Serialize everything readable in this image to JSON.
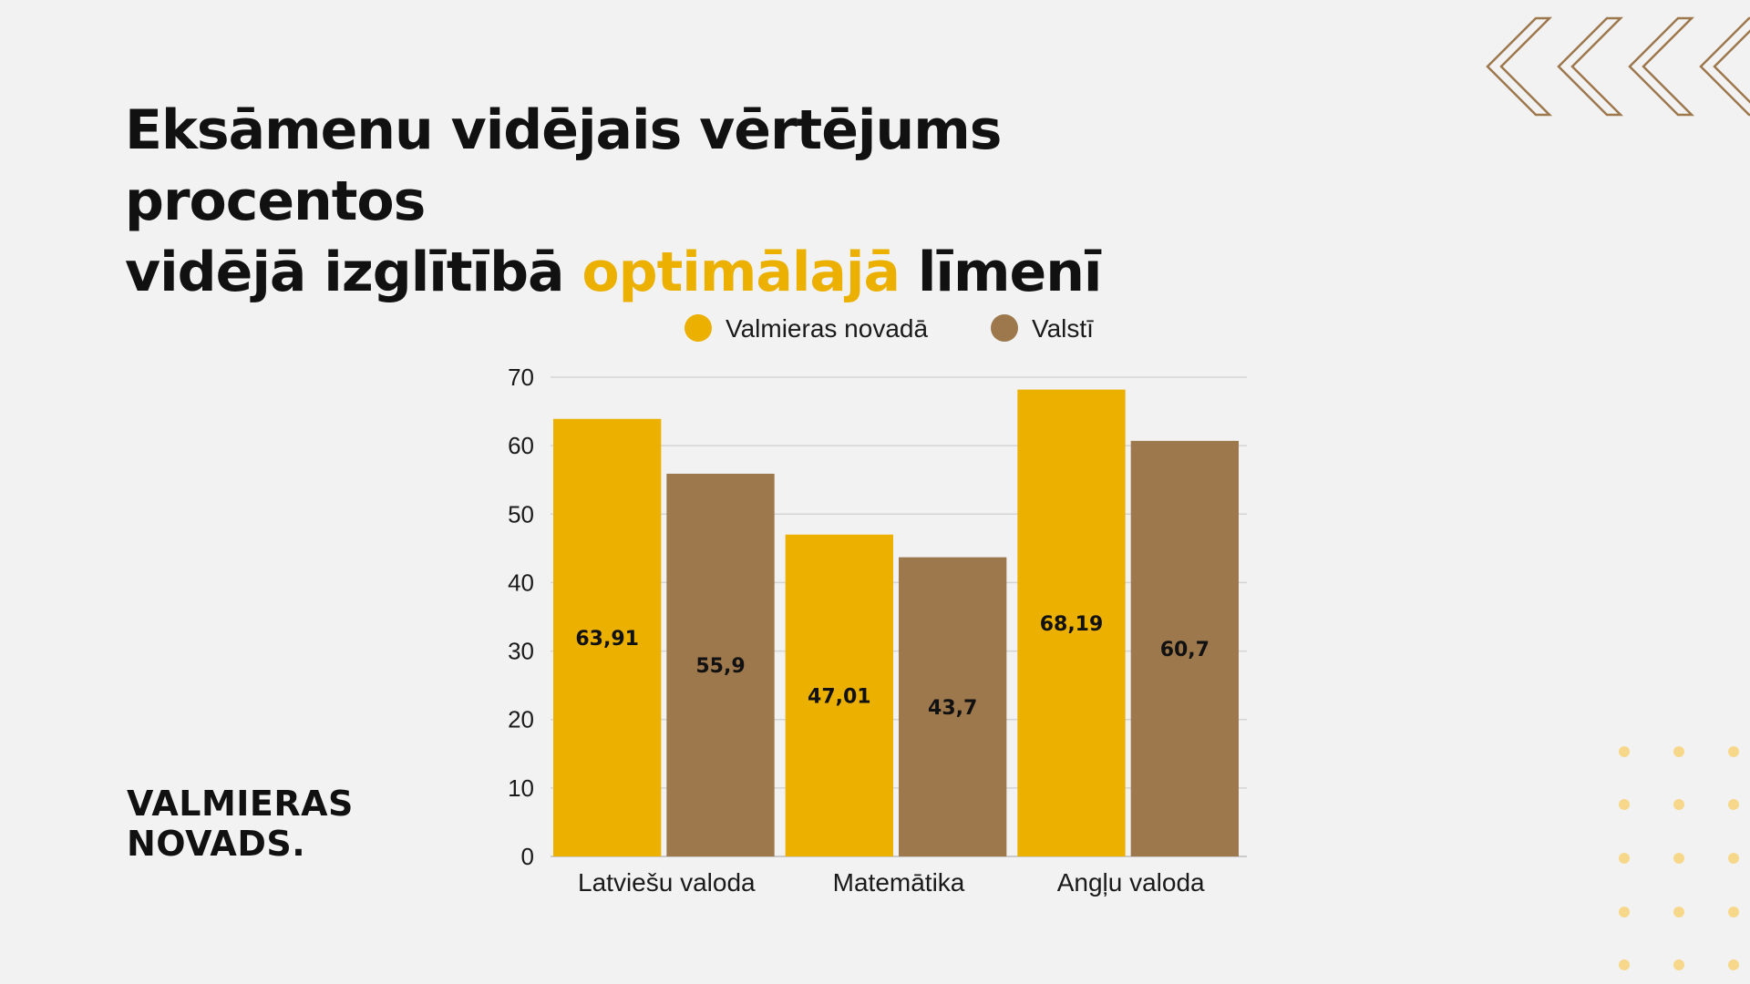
{
  "title": {
    "line1": "Eksāmenu vidējais vērtējums procentos",
    "line2_before": "vidējā izglītībā ",
    "line2_accent": "optimālajā",
    "line2_after": " līmenī"
  },
  "logo": {
    "line1": "VALMIERAS",
    "line2": "NOVADS."
  },
  "colors": {
    "accent": "#ebb000",
    "series_region": "#ebb000",
    "series_country": "#9e784d",
    "decor_chevron": "#9e784d",
    "decor_dots": "#f7d88a",
    "background": "#f2f2f2"
  },
  "chart_data": {
    "type": "bar",
    "categories": [
      "Latviešu valoda",
      "Matemātika",
      "Angļu valoda"
    ],
    "series": [
      {
        "name": "Valmieras novadā",
        "values": [
          63.91,
          47.01,
          68.19
        ],
        "labels": [
          "63,91",
          "47,01",
          "68,19"
        ],
        "color": "#ebb000"
      },
      {
        "name": "Valstī",
        "values": [
          55.9,
          43.7,
          60.7
        ],
        "labels": [
          "55,9",
          "43,7",
          "60,7"
        ],
        "color": "#9e784d"
      }
    ],
    "ylim": [
      0,
      70
    ],
    "yticks": [
      0,
      10,
      20,
      30,
      40,
      50,
      60,
      70
    ],
    "grid": true,
    "legend": "top",
    "xlabel": "",
    "ylabel": ""
  }
}
